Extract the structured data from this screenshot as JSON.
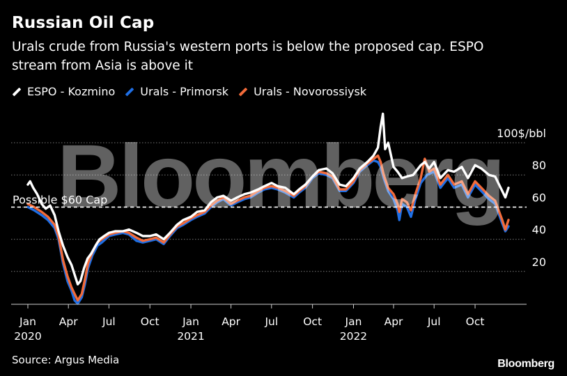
{
  "title": "Russian Oil Cap",
  "subtitle": "Urals crude from Russia's western ports is below the proposed cap. ESPO stream from Asia is above it",
  "source": "Source: Argus Media",
  "brand": "Bloomberg",
  "watermark": "Bloomberg",
  "cap_label": "Possible $60 Cap",
  "colors": {
    "background": "#000000",
    "espo": "#ffffff",
    "primorsk": "#1f6fe5",
    "novorossiysk": "#f26b3a",
    "grid": "#7a7a7a",
    "cap": "#ffffff"
  },
  "chart_data": {
    "type": "line",
    "y_axis": {
      "min": 0,
      "max": 100,
      "ticks": [
        20,
        40,
        60,
        80,
        100
      ],
      "tick_labels": [
        "20",
        "40",
        "60",
        "80",
        "100$/bbl"
      ],
      "position": "right"
    },
    "x_axis": {
      "ticks": [
        {
          "label": "Jan",
          "year": "2020",
          "date": "2020-01-01"
        },
        {
          "label": "Apr",
          "year": "",
          "date": "2020-04-01"
        },
        {
          "label": "Jul",
          "year": "",
          "date": "2020-07-01"
        },
        {
          "label": "Oct",
          "year": "",
          "date": "2020-10-01"
        },
        {
          "label": "Jan",
          "year": "2021",
          "date": "2021-01-01"
        },
        {
          "label": "Apr",
          "year": "",
          "date": "2021-04-01"
        },
        {
          "label": "Jul",
          "year": "",
          "date": "2021-07-01"
        },
        {
          "label": "Oct",
          "year": "",
          "date": "2021-10-01"
        },
        {
          "label": "Jan",
          "year": "2022",
          "date": "2022-01-01"
        },
        {
          "label": "Apr",
          "year": "",
          "date": "2022-04-01"
        },
        {
          "label": "Jul",
          "year": "",
          "date": "2022-07-01"
        },
        {
          "label": "Oct",
          "year": "",
          "date": "2022-10-01"
        }
      ]
    },
    "reference_line": {
      "value": 60,
      "label": "Possible $60 Cap",
      "style": "dashed"
    },
    "grid": "horizontal-dotted",
    "legend": "top-left",
    "series": [
      {
        "name": "ESPO - Kozmino",
        "color": "#ffffff",
        "points": [
          [
            "2020-01-01",
            74
          ],
          [
            "2020-01-06",
            76
          ],
          [
            "2020-01-13",
            72
          ],
          [
            "2020-01-22",
            68
          ],
          [
            "2020-02-01",
            62
          ],
          [
            "2020-02-10",
            59
          ],
          [
            "2020-02-20",
            61
          ],
          [
            "2020-03-01",
            55
          ],
          [
            "2020-03-10",
            45
          ],
          [
            "2020-03-20",
            36
          ],
          [
            "2020-03-30",
            29
          ],
          [
            "2020-04-08",
            24
          ],
          [
            "2020-04-15",
            18
          ],
          [
            "2020-04-22",
            12
          ],
          [
            "2020-04-28",
            14
          ],
          [
            "2020-05-06",
            22
          ],
          [
            "2020-05-14",
            28
          ],
          [
            "2020-05-22",
            31
          ],
          [
            "2020-06-01",
            36
          ],
          [
            "2020-06-10",
            40
          ],
          [
            "2020-06-20",
            42
          ],
          [
            "2020-07-01",
            44
          ],
          [
            "2020-07-15",
            45
          ],
          [
            "2020-08-01",
            45
          ],
          [
            "2020-08-15",
            46
          ],
          [
            "2020-09-01",
            44
          ],
          [
            "2020-09-15",
            42
          ],
          [
            "2020-10-01",
            42
          ],
          [
            "2020-10-15",
            43
          ],
          [
            "2020-11-01",
            40
          ],
          [
            "2020-11-15",
            44
          ],
          [
            "2020-12-01",
            49
          ],
          [
            "2020-12-15",
            52
          ],
          [
            "2021-01-01",
            54
          ],
          [
            "2021-01-15",
            57
          ],
          [
            "2021-02-01",
            58
          ],
          [
            "2021-02-15",
            63
          ],
          [
            "2021-03-01",
            66
          ],
          [
            "2021-03-15",
            67
          ],
          [
            "2021-04-01",
            64
          ],
          [
            "2021-04-15",
            66
          ],
          [
            "2021-05-01",
            68
          ],
          [
            "2021-05-15",
            69
          ],
          [
            "2021-06-01",
            71
          ],
          [
            "2021-06-15",
            73
          ],
          [
            "2021-07-01",
            75
          ],
          [
            "2021-07-15",
            73
          ],
          [
            "2021-08-01",
            72
          ],
          [
            "2021-08-20",
            68
          ],
          [
            "2021-09-01",
            71
          ],
          [
            "2021-09-15",
            74
          ],
          [
            "2021-10-01",
            79
          ],
          [
            "2021-10-15",
            83
          ],
          [
            "2021-11-01",
            84
          ],
          [
            "2021-11-15",
            81
          ],
          [
            "2021-12-01",
            74
          ],
          [
            "2021-12-15",
            73
          ],
          [
            "2022-01-01",
            78
          ],
          [
            "2022-01-15",
            84
          ],
          [
            "2022-02-01",
            88
          ],
          [
            "2022-02-15",
            92
          ],
          [
            "2022-02-25",
            97
          ],
          [
            "2022-03-03",
            110
          ],
          [
            "2022-03-08",
            118
          ],
          [
            "2022-03-13",
            96
          ],
          [
            "2022-03-20",
            100
          ],
          [
            "2022-04-01",
            85
          ],
          [
            "2022-04-10",
            82
          ],
          [
            "2022-04-20",
            78
          ],
          [
            "2022-05-01",
            79
          ],
          [
            "2022-05-15",
            80
          ],
          [
            "2022-06-01",
            86
          ],
          [
            "2022-06-10",
            88
          ],
          [
            "2022-06-20",
            84
          ],
          [
            "2022-07-01",
            88
          ],
          [
            "2022-07-15",
            78
          ],
          [
            "2022-08-01",
            83
          ],
          [
            "2022-08-15",
            82
          ],
          [
            "2022-09-01",
            85
          ],
          [
            "2022-09-15",
            78
          ],
          [
            "2022-10-01",
            86
          ],
          [
            "2022-10-15",
            84
          ],
          [
            "2022-11-01",
            80
          ],
          [
            "2022-11-15",
            79
          ],
          [
            "2022-12-01",
            70
          ],
          [
            "2022-12-08",
            66
          ],
          [
            "2022-12-15",
            72
          ]
        ]
      },
      {
        "name": "Urals - Primorsk",
        "color": "#1f6fe5",
        "points": [
          [
            "2020-01-01",
            60
          ],
          [
            "2020-01-15",
            58
          ],
          [
            "2020-02-01",
            55
          ],
          [
            "2020-02-15",
            52
          ],
          [
            "2020-03-01",
            47
          ],
          [
            "2020-03-10",
            40
          ],
          [
            "2020-03-20",
            25
          ],
          [
            "2020-03-30",
            14
          ],
          [
            "2020-04-08",
            8
          ],
          [
            "2020-04-15",
            2
          ],
          [
            "2020-04-22",
            0
          ],
          [
            "2020-05-01",
            4
          ],
          [
            "2020-05-08",
            12
          ],
          [
            "2020-05-15",
            22
          ],
          [
            "2020-05-25",
            30
          ],
          [
            "2020-06-05",
            36
          ],
          [
            "2020-06-15",
            38
          ],
          [
            "2020-07-01",
            42
          ],
          [
            "2020-07-15",
            43
          ],
          [
            "2020-08-01",
            44
          ],
          [
            "2020-08-15",
            43
          ],
          [
            "2020-09-01",
            39
          ],
          [
            "2020-09-15",
            38
          ],
          [
            "2020-10-01",
            39
          ],
          [
            "2020-10-15",
            40
          ],
          [
            "2020-11-01",
            37
          ],
          [
            "2020-11-15",
            42
          ],
          [
            "2020-12-01",
            47
          ],
          [
            "2020-12-15",
            49
          ],
          [
            "2021-01-01",
            52
          ],
          [
            "2021-01-15",
            54
          ],
          [
            "2021-02-01",
            56
          ],
          [
            "2021-02-15",
            60
          ],
          [
            "2021-03-01",
            63
          ],
          [
            "2021-03-15",
            65
          ],
          [
            "2021-04-01",
            61
          ],
          [
            "2021-04-15",
            63
          ],
          [
            "2021-05-01",
            65
          ],
          [
            "2021-05-15",
            66
          ],
          [
            "2021-06-01",
            69
          ],
          [
            "2021-06-15",
            71
          ],
          [
            "2021-07-01",
            72
          ],
          [
            "2021-07-15",
            71
          ],
          [
            "2021-08-01",
            69
          ],
          [
            "2021-08-20",
            66
          ],
          [
            "2021-09-01",
            69
          ],
          [
            "2021-09-15",
            72
          ],
          [
            "2021-10-01",
            78
          ],
          [
            "2021-10-15",
            81
          ],
          [
            "2021-11-01",
            80
          ],
          [
            "2021-11-15",
            78
          ],
          [
            "2021-12-01",
            70
          ],
          [
            "2021-12-15",
            70
          ],
          [
            "2022-01-01",
            75
          ],
          [
            "2022-01-15",
            82
          ],
          [
            "2022-02-01",
            86
          ],
          [
            "2022-02-15",
            89
          ],
          [
            "2022-02-25",
            88
          ],
          [
            "2022-03-03",
            85
          ],
          [
            "2022-03-10",
            78
          ],
          [
            "2022-03-20",
            70
          ],
          [
            "2022-04-01",
            65
          ],
          [
            "2022-04-10",
            58
          ],
          [
            "2022-04-14",
            52
          ],
          [
            "2022-04-20",
            62
          ],
          [
            "2022-05-01",
            60
          ],
          [
            "2022-05-10",
            54
          ],
          [
            "2022-05-20",
            65
          ],
          [
            "2022-06-01",
            75
          ],
          [
            "2022-06-15",
            80
          ],
          [
            "2022-07-01",
            82
          ],
          [
            "2022-07-15",
            72
          ],
          [
            "2022-08-01",
            78
          ],
          [
            "2022-08-15",
            72
          ],
          [
            "2022-09-01",
            74
          ],
          [
            "2022-09-15",
            66
          ],
          [
            "2022-10-01",
            74
          ],
          [
            "2022-10-15",
            70
          ],
          [
            "2022-11-01",
            65
          ],
          [
            "2022-11-15",
            62
          ],
          [
            "2022-12-01",
            50
          ],
          [
            "2022-12-08",
            45
          ],
          [
            "2022-12-15",
            48
          ]
        ]
      },
      {
        "name": "Urals - Novorossiysk",
        "color": "#f26b3a",
        "points": [
          [
            "2020-01-01",
            62
          ],
          [
            "2020-01-15",
            60
          ],
          [
            "2020-02-01",
            57
          ],
          [
            "2020-02-15",
            54
          ],
          [
            "2020-03-01",
            49
          ],
          [
            "2020-03-10",
            42
          ],
          [
            "2020-03-20",
            27
          ],
          [
            "2020-03-30",
            17
          ],
          [
            "2020-04-08",
            10
          ],
          [
            "2020-04-15",
            6
          ],
          [
            "2020-04-22",
            2
          ],
          [
            "2020-05-01",
            6
          ],
          [
            "2020-05-08",
            15
          ],
          [
            "2020-05-15",
            25
          ],
          [
            "2020-05-25",
            32
          ],
          [
            "2020-06-05",
            38
          ],
          [
            "2020-06-15",
            40
          ],
          [
            "2020-07-01",
            43
          ],
          [
            "2020-07-15",
            44
          ],
          [
            "2020-08-01",
            45
          ],
          [
            "2020-08-15",
            44
          ],
          [
            "2020-09-01",
            41
          ],
          [
            "2020-09-15",
            39
          ],
          [
            "2020-10-01",
            40
          ],
          [
            "2020-10-15",
            41
          ],
          [
            "2020-11-01",
            38
          ],
          [
            "2020-11-15",
            43
          ],
          [
            "2020-12-01",
            48
          ],
          [
            "2020-12-15",
            50
          ],
          [
            "2021-01-01",
            53
          ],
          [
            "2021-01-15",
            55
          ],
          [
            "2021-02-01",
            57
          ],
          [
            "2021-02-15",
            61
          ],
          [
            "2021-03-01",
            64
          ],
          [
            "2021-03-15",
            66
          ],
          [
            "2021-04-01",
            62
          ],
          [
            "2021-04-15",
            64
          ],
          [
            "2021-05-01",
            66
          ],
          [
            "2021-05-15",
            67
          ],
          [
            "2021-06-01",
            70
          ],
          [
            "2021-06-15",
            72
          ],
          [
            "2021-07-01",
            73
          ],
          [
            "2021-07-15",
            72
          ],
          [
            "2021-08-01",
            70
          ],
          [
            "2021-08-20",
            67
          ],
          [
            "2021-09-01",
            70
          ],
          [
            "2021-09-15",
            73
          ],
          [
            "2021-10-01",
            79
          ],
          [
            "2021-10-15",
            82
          ],
          [
            "2021-11-01",
            81
          ],
          [
            "2021-11-15",
            79
          ],
          [
            "2021-12-01",
            71
          ],
          [
            "2021-12-15",
            71
          ],
          [
            "2022-01-01",
            76
          ],
          [
            "2022-01-15",
            83
          ],
          [
            "2022-02-01",
            87
          ],
          [
            "2022-02-15",
            90
          ],
          [
            "2022-02-25",
            92
          ],
          [
            "2022-03-03",
            88
          ],
          [
            "2022-03-10",
            80
          ],
          [
            "2022-03-20",
            72
          ],
          [
            "2022-04-01",
            68
          ],
          [
            "2022-04-10",
            62
          ],
          [
            "2022-04-14",
            57
          ],
          [
            "2022-04-20",
            65
          ],
          [
            "2022-05-01",
            63
          ],
          [
            "2022-05-10",
            58
          ],
          [
            "2022-05-20",
            68
          ],
          [
            "2022-06-01",
            78
          ],
          [
            "2022-06-10",
            90
          ],
          [
            "2022-06-20",
            82
          ],
          [
            "2022-07-01",
            84
          ],
          [
            "2022-07-15",
            74
          ],
          [
            "2022-08-01",
            80
          ],
          [
            "2022-08-15",
            74
          ],
          [
            "2022-09-01",
            76
          ],
          [
            "2022-09-15",
            68
          ],
          [
            "2022-10-01",
            76
          ],
          [
            "2022-10-15",
            72
          ],
          [
            "2022-11-01",
            67
          ],
          [
            "2022-11-15",
            64
          ],
          [
            "2022-12-01",
            52
          ],
          [
            "2022-12-08",
            46
          ],
          [
            "2022-12-15",
            52
          ]
        ]
      }
    ]
  }
}
